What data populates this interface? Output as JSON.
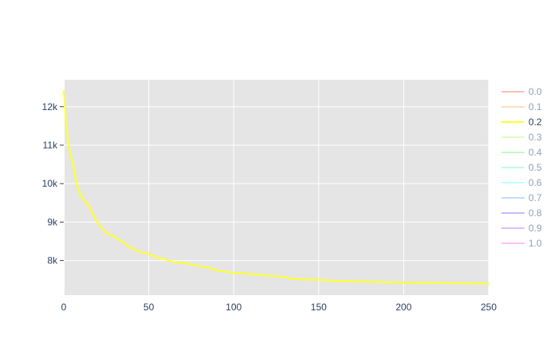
{
  "chart_data": {
    "type": "line",
    "title": "",
    "xlabel": "",
    "ylabel": "",
    "xlim": [
      0,
      250
    ],
    "ylim": [
      7100,
      12700
    ],
    "x_ticks": [
      0,
      50,
      100,
      150,
      200,
      250
    ],
    "x_tick_labels": [
      "0",
      "50",
      "100",
      "150",
      "200",
      "250"
    ],
    "y_ticks": [
      8000,
      9000,
      10000,
      11000,
      12000
    ],
    "y_tick_labels": [
      "8k",
      "9k",
      "10k",
      "11k",
      "12k"
    ],
    "grid": true,
    "plot_background": "#e5e5e5",
    "legend_position": "right",
    "series": [
      {
        "name": "0.0",
        "color": "#ff7f7f",
        "visible": false,
        "x": [],
        "y": []
      },
      {
        "name": "0.1",
        "color": "#ffbf80",
        "visible": false,
        "x": [],
        "y": []
      },
      {
        "name": "0.2",
        "color": "#ffff33",
        "visible": true,
        "x": [
          0,
          1,
          2,
          3,
          4,
          5,
          6,
          7,
          8,
          9,
          10,
          12,
          14,
          16,
          18,
          20,
          22,
          25,
          30,
          35,
          40,
          45,
          50,
          55,
          60,
          65,
          70,
          75,
          80,
          85,
          90,
          100,
          110,
          120,
          130,
          135,
          150,
          160,
          180,
          200,
          220,
          250
        ],
        "y": [
          12400,
          11900,
          11350,
          11000,
          10800,
          10600,
          10450,
          10200,
          9950,
          9850,
          9700,
          9600,
          9480,
          9350,
          9150,
          9000,
          8880,
          8720,
          8620,
          8480,
          8320,
          8220,
          8180,
          8080,
          8030,
          7960,
          7940,
          7900,
          7850,
          7820,
          7750,
          7680,
          7650,
          7610,
          7570,
          7520,
          7500,
          7470,
          7450,
          7430,
          7420,
          7400
        ]
      },
      {
        "name": "0.3",
        "color": "#bfff80",
        "visible": false,
        "x": [],
        "y": []
      },
      {
        "name": "0.4",
        "color": "#80ff80",
        "visible": false,
        "x": [],
        "y": []
      },
      {
        "name": "0.5",
        "color": "#80ffbf",
        "visible": false,
        "x": [],
        "y": []
      },
      {
        "name": "0.6",
        "color": "#80ffff",
        "visible": false,
        "x": [],
        "y": []
      },
      {
        "name": "0.7",
        "color": "#80bfff",
        "visible": false,
        "x": [],
        "y": []
      },
      {
        "name": "0.8",
        "color": "#8080ff",
        "visible": false,
        "x": [],
        "y": []
      },
      {
        "name": "0.9",
        "color": "#bf80ff",
        "visible": false,
        "x": [],
        "y": []
      },
      {
        "name": "1.0",
        "color": "#ff80ff",
        "visible": false,
        "x": [],
        "y": []
      }
    ]
  }
}
